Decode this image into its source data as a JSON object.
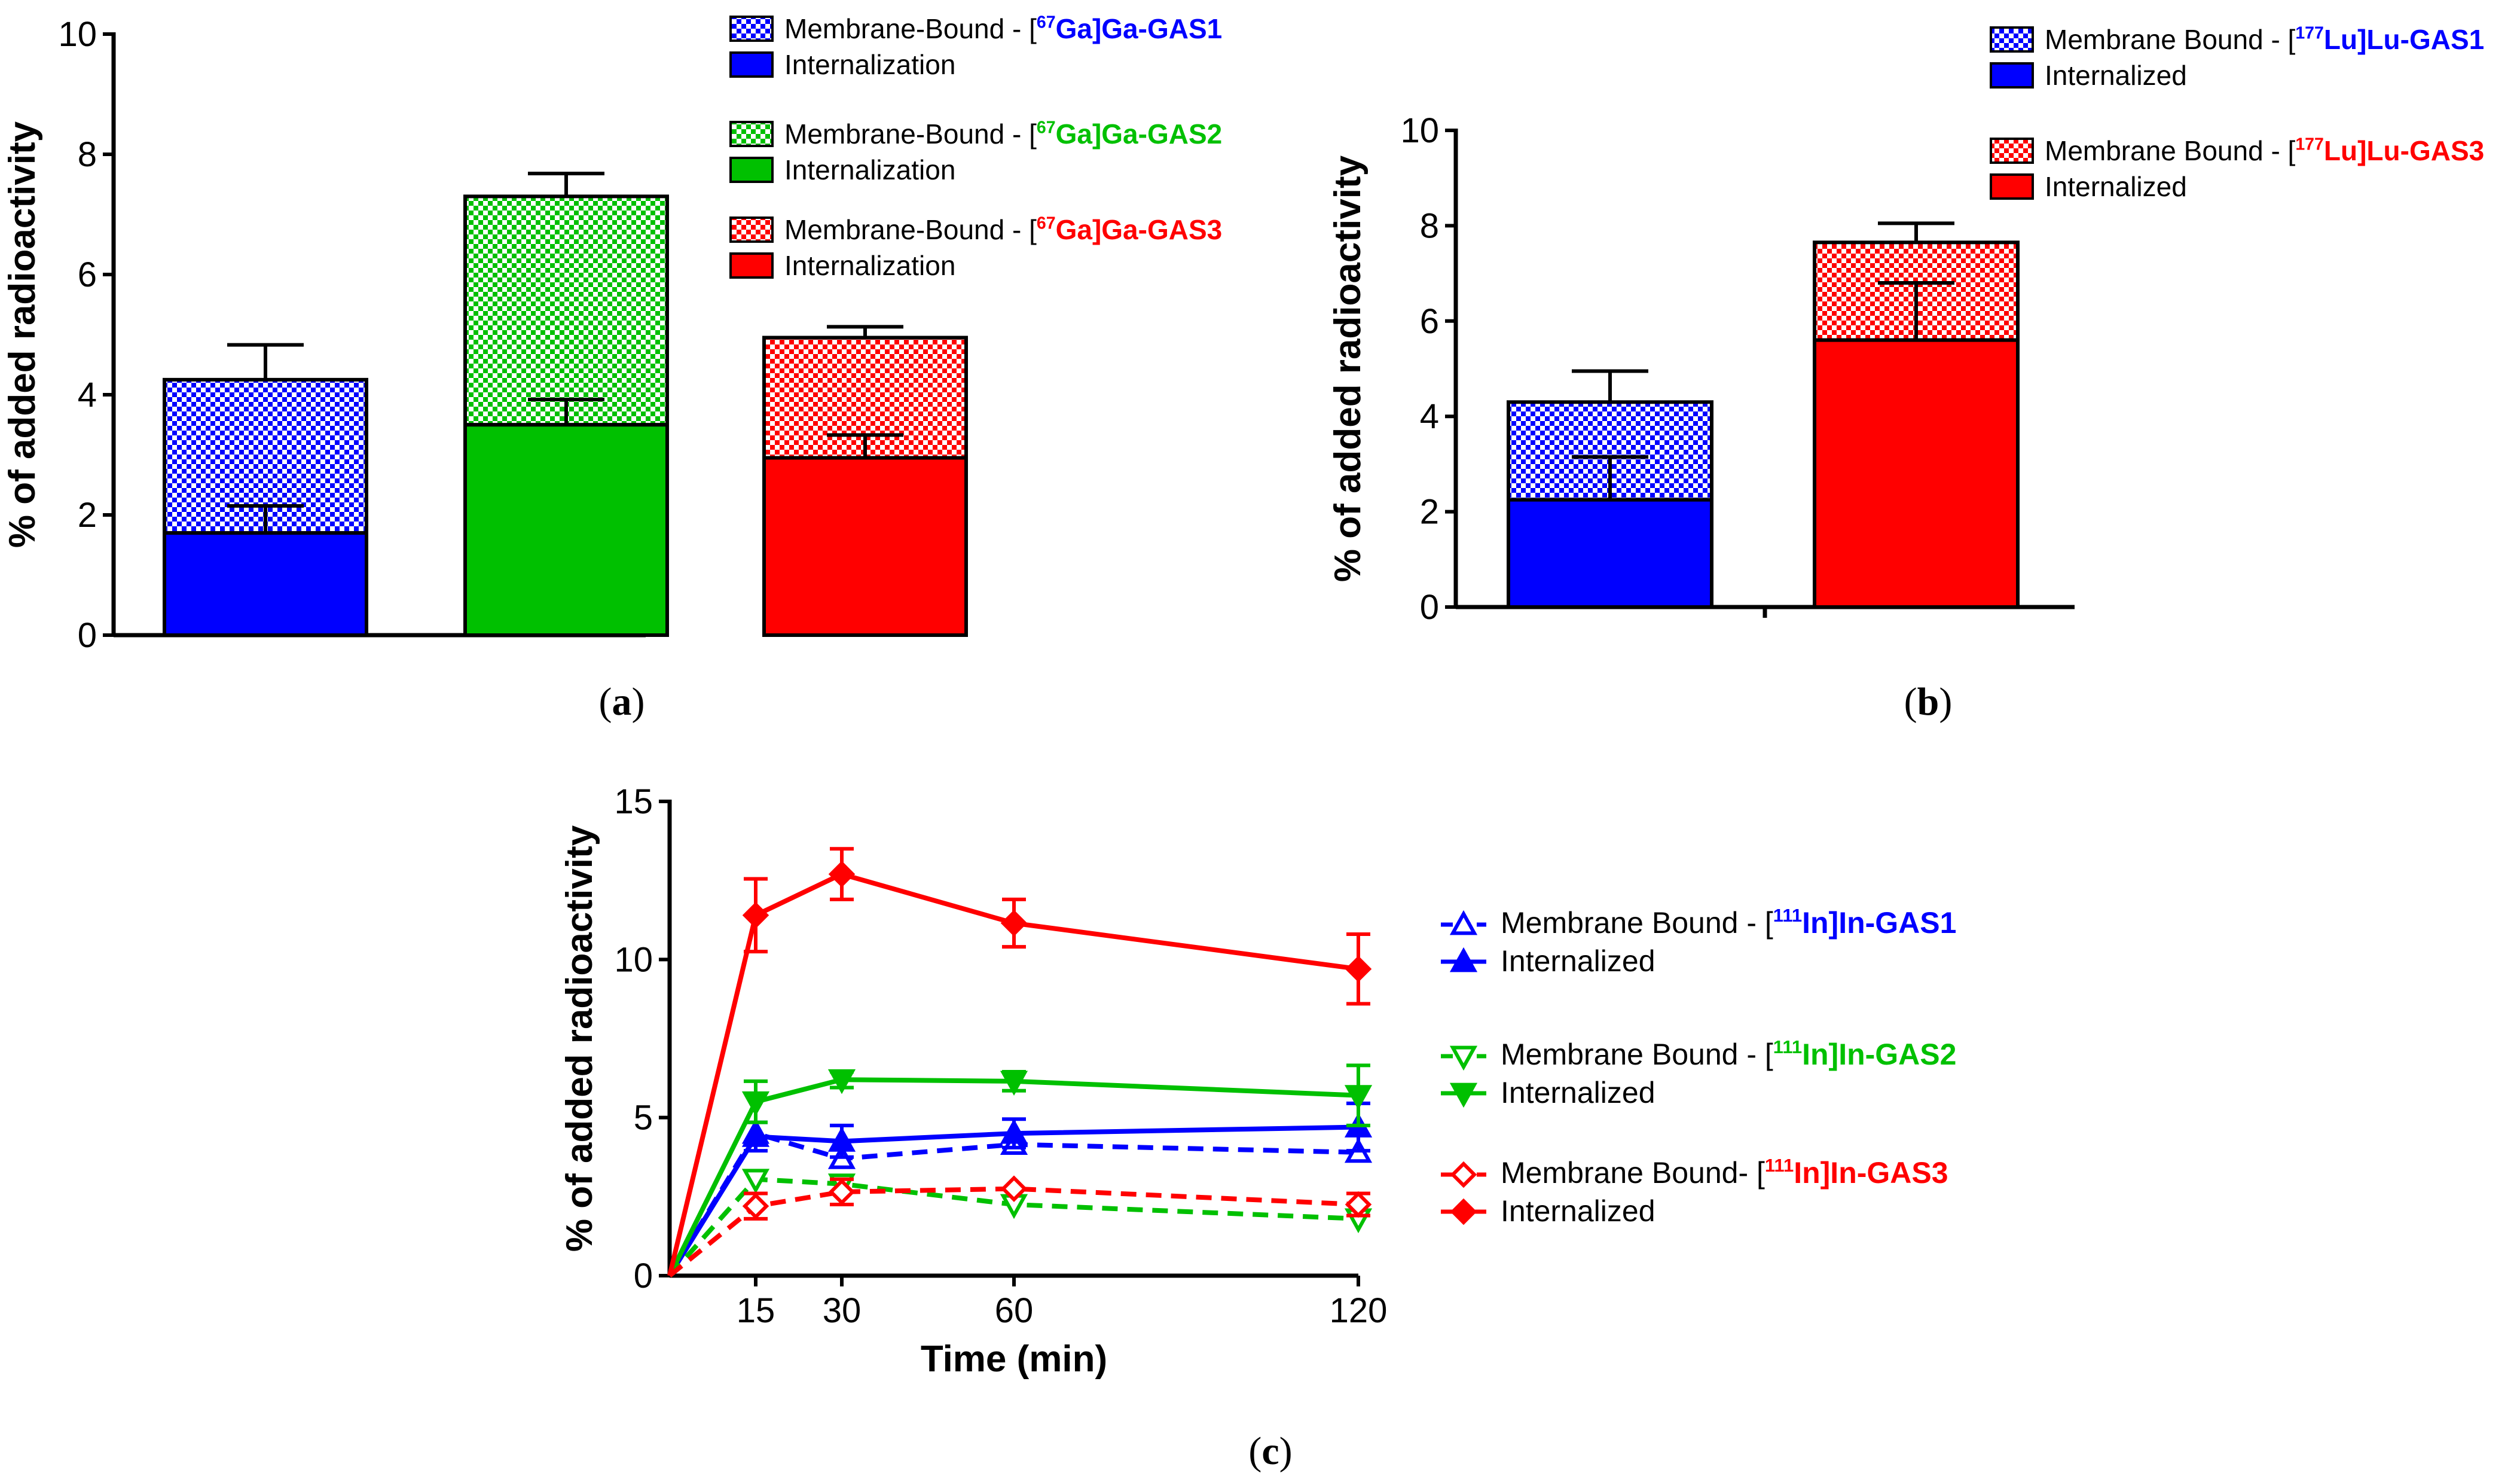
{
  "colors": {
    "blue": "#0000ff",
    "green": "#00c000",
    "red": "#ff0000",
    "black": "#000000"
  },
  "chart_data": [
    {
      "id": "a",
      "type": "bar",
      "stacked": true,
      "caption": "a",
      "ylabel": "% of added radioactivity",
      "ylim": [
        0,
        10
      ],
      "yticks": [
        0,
        2,
        4,
        6,
        8,
        10
      ],
      "categories": [
        "GAS1",
        "GAS2",
        "GAS3"
      ],
      "series": [
        {
          "name": "Internalization",
          "values": [
            1.7,
            3.5,
            2.95
          ],
          "errors": [
            0.45,
            0.42,
            0.38
          ]
        },
        {
          "name": "Membrane-Bound",
          "values": [
            2.55,
            3.8,
            2.0
          ],
          "errors": [
            0.58,
            0.38,
            0.18
          ]
        }
      ],
      "legend": [
        {
          "prefix": "Membrane-Bound - [",
          "sup": "67",
          "suffix": "Ga]Ga-GAS1",
          "second": "Internalization",
          "color": "#0000ff"
        },
        {
          "prefix": "Membrane-Bound - [",
          "sup": "67",
          "suffix": "Ga]Ga-GAS2",
          "second": "Internalization",
          "color": "#00c000"
        },
        {
          "prefix": "Membrane-Bound - [",
          "sup": "67",
          "suffix": "Ga]Ga-GAS3",
          "second": "Internalization",
          "color": "#ff0000"
        }
      ]
    },
    {
      "id": "b",
      "type": "bar",
      "stacked": true,
      "caption": "b",
      "ylabel": "% of added radioactivity",
      "ylim": [
        0,
        10
      ],
      "yticks": [
        0,
        2,
        4,
        6,
        8,
        10
      ],
      "categories": [
        "GAS1",
        "GAS3"
      ],
      "series": [
        {
          "name": "Internalized",
          "values": [
            2.25,
            5.6
          ],
          "errors": [
            0.9,
            1.2
          ]
        },
        {
          "name": "Membrane Bound",
          "values": [
            2.05,
            2.05
          ],
          "errors": [
            0.65,
            0.4
          ]
        }
      ],
      "legend": [
        {
          "prefix": "Membrane Bound - [",
          "sup": "177",
          "suffix": "Lu]Lu-GAS1",
          "second": "Internalized",
          "color": "#0000ff"
        },
        {
          "prefix": "Membrane Bound - [",
          "sup": "177",
          "suffix": "Lu]Lu-GAS3",
          "second": "Internalized",
          "color": "#ff0000"
        }
      ]
    },
    {
      "id": "c",
      "type": "line",
      "caption": "c",
      "xlabel": "Time (min)",
      "ylabel": "% of added radioactivity",
      "ylim": [
        0,
        15
      ],
      "yticks": [
        0,
        5,
        10,
        15
      ],
      "xlim": [
        0,
        120
      ],
      "xticks": [
        15,
        30,
        60,
        120
      ],
      "series": [
        {
          "name": "Membrane Bound - GAS1",
          "color": "#0000ff",
          "dashed": true,
          "marker": "triangle-up-open",
          "x": [
            0,
            15,
            30,
            60,
            120
          ],
          "y": [
            0,
            4.5,
            3.7,
            4.15,
            3.9
          ],
          "err": [
            0,
            0,
            0,
            0,
            0
          ]
        },
        {
          "name": "Internalized - GAS1",
          "color": "#0000ff",
          "dashed": false,
          "marker": "triangle-up-filled",
          "x": [
            0,
            15,
            30,
            60,
            120
          ],
          "y": [
            0,
            4.4,
            4.25,
            4.5,
            4.7
          ],
          "err": [
            0,
            0.45,
            0.5,
            0.45,
            0.75
          ]
        },
        {
          "name": "Membrane Bound - GAS2",
          "color": "#00c000",
          "dashed": true,
          "marker": "triangle-down-open",
          "x": [
            0,
            15,
            30,
            60,
            120
          ],
          "y": [
            0,
            3.05,
            2.9,
            2.25,
            1.8
          ],
          "err": [
            0,
            0,
            0,
            0,
            0
          ]
        },
        {
          "name": "Internalized - GAS2",
          "color": "#00c000",
          "dashed": false,
          "marker": "triangle-down-filled",
          "x": [
            0,
            15,
            30,
            60,
            120
          ],
          "y": [
            0,
            5.5,
            6.2,
            6.15,
            5.7
          ],
          "err": [
            0,
            0.65,
            0.25,
            0.3,
            0.95
          ]
        },
        {
          "name": "Membrane Bound - GAS3",
          "color": "#ff0000",
          "dashed": true,
          "marker": "diamond-open",
          "x": [
            0,
            15,
            30,
            60,
            120
          ],
          "y": [
            0,
            2.2,
            2.65,
            2.75,
            2.25
          ],
          "err": [
            0,
            0.4,
            0.4,
            0,
            0.35
          ]
        },
        {
          "name": "Internalized - GAS3",
          "color": "#ff0000",
          "dashed": false,
          "marker": "diamond-filled",
          "x": [
            0,
            15,
            30,
            60,
            120
          ],
          "y": [
            0,
            11.4,
            12.7,
            11.15,
            9.7
          ],
          "err": [
            0,
            1.15,
            0.8,
            0.75,
            1.1
          ]
        }
      ],
      "legend": [
        {
          "prefix": "Membrane Bound - [",
          "sup": "111",
          "suffix": "In]In-GAS1",
          "second": "Internalized",
          "color": "#0000ff",
          "open_marker": "triangle-up-open",
          "filled_marker": "triangle-up-filled"
        },
        {
          "prefix": "Membrane Bound - [",
          "sup": "111",
          "suffix": "In]In-GAS2",
          "second": "Internalized",
          "color": "#00c000",
          "open_marker": "triangle-down-open",
          "filled_marker": "triangle-down-filled"
        },
        {
          "prefix": "Membrane Bound- [",
          "sup": "111",
          "suffix": "In]In-GAS3",
          "second": "Internalized",
          "color": "#ff0000",
          "open_marker": "diamond-open",
          "filled_marker": "diamond-filled"
        }
      ]
    }
  ]
}
